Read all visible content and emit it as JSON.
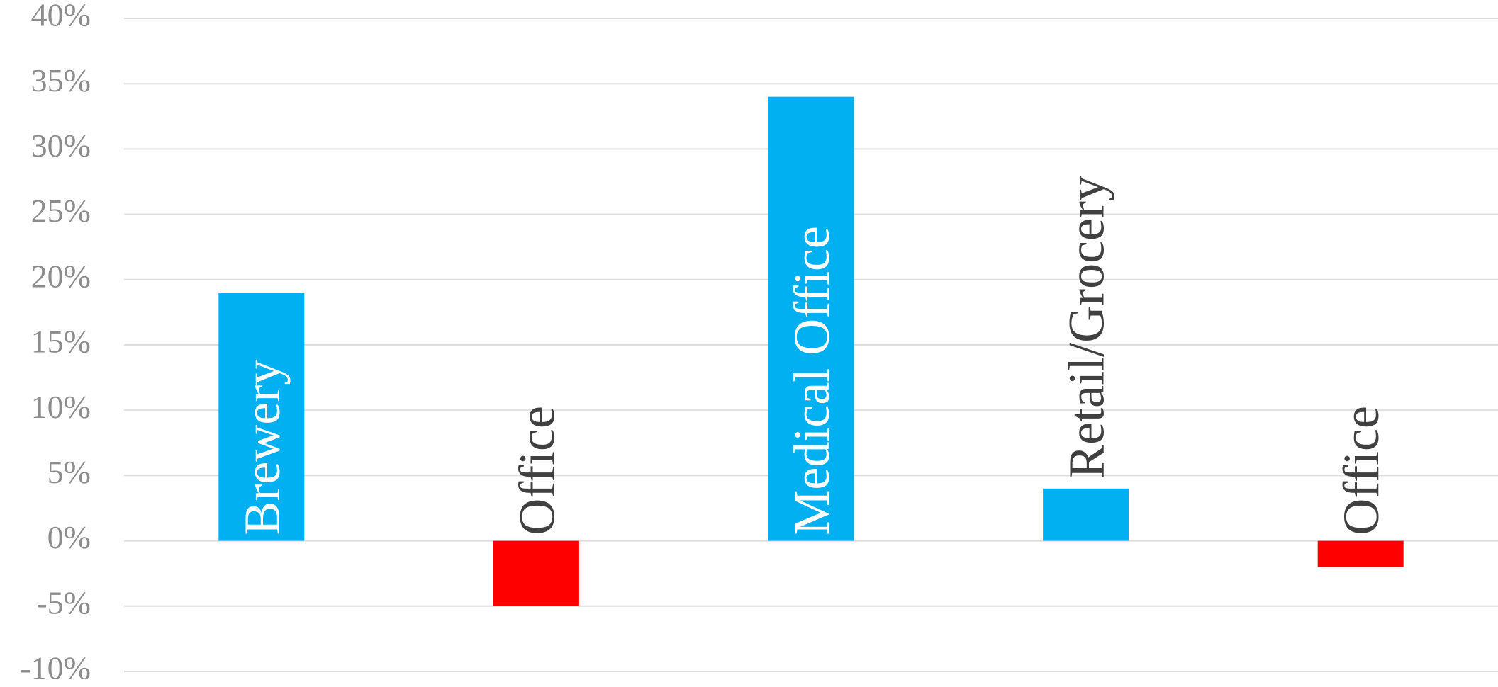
{
  "chart_data": {
    "type": "bar",
    "categories": [
      "Brewery",
      "Office",
      "Medical Office",
      "Retail/Grocery",
      "Office"
    ],
    "values": [
      19,
      -5,
      34,
      4,
      -2
    ],
    "ylim": [
      -10,
      40
    ],
    "yticks": [
      40,
      35,
      30,
      25,
      20,
      15,
      10,
      5,
      0,
      -5,
      -10
    ],
    "ytick_labels": [
      "40%",
      "35%",
      "30%",
      "25%",
      "20%",
      "15%",
      "10%",
      "5%",
      "0%",
      "-5%",
      "-10%"
    ],
    "grid": true,
    "legend": "none",
    "colors": {
      "positive": "#00b0f0",
      "negative": "#ff0000",
      "label_inside": "#ffffff",
      "label_outside": "#404040"
    }
  }
}
